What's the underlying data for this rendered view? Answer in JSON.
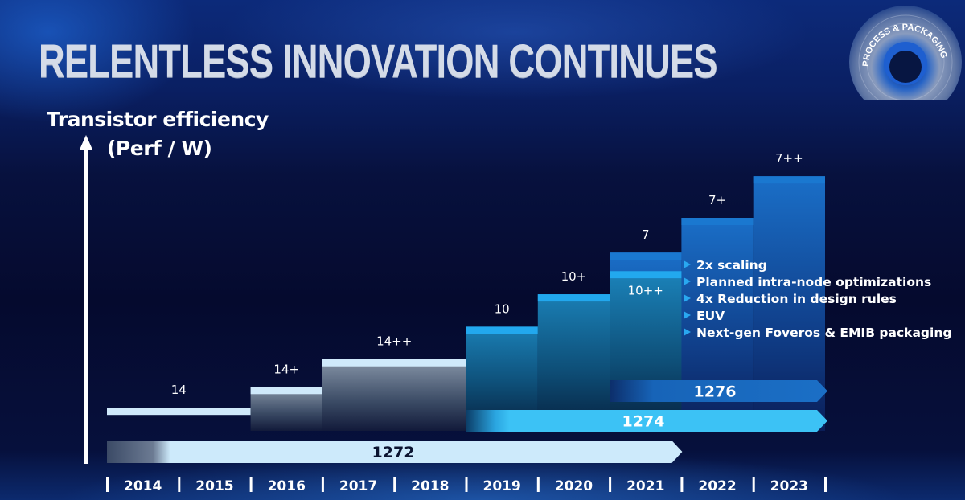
{
  "slide": {
    "title": "RELENTLESS INNOVATION CONTINUES",
    "badge_text": "PROCESS & PACKAGING",
    "y_axis_label_line1": "Transistor efficiency",
    "y_axis_label_line2": "(Perf / W)"
  },
  "bullets": [
    "2x scaling",
    "Planned intra-node optimizations",
    "4x Reduction in design rules",
    "EUV",
    "Next-gen Foveros & EMIB packaging"
  ],
  "colors": {
    "node14": "#cfe9fb",
    "node10": "#22a8ee",
    "node7": "#1a78d0",
    "arrow1272": "#cdeafb",
    "arrow1274": "#3cc2f5",
    "arrow1276": "#1b6fc6",
    "bullet": "#29a8f0"
  },
  "chart_data": {
    "type": "bar",
    "title": "RELENTLESS INNOVATION CONTINUES",
    "ylabel": "Transistor efficiency (Perf / W)",
    "xlabel": "",
    "categories": [
      "2014",
      "2015",
      "2016",
      "2017",
      "2018",
      "2019",
      "2020",
      "2021",
      "2022",
      "2023"
    ],
    "x_range": [
      2014,
      2024
    ],
    "y_scale": "relative (no numeric ticks)",
    "grid": false,
    "nodes": [
      {
        "label": "14",
        "family": "14nm",
        "start": 2014,
        "end": 2016,
        "level": 1.0
      },
      {
        "label": "14+",
        "family": "14nm",
        "start": 2016,
        "end": 2017,
        "level": 1.9
      },
      {
        "label": "14++",
        "family": "14nm",
        "start": 2017,
        "end": 2019,
        "level": 3.1
      },
      {
        "label": "10",
        "family": "10nm",
        "start": 2019,
        "end": 2020,
        "level": 4.5
      },
      {
        "label": "10+",
        "family": "10nm",
        "start": 2020,
        "end": 2021,
        "level": 5.9
      },
      {
        "label": "10++",
        "family": "10nm",
        "start": 2021,
        "end": 2022,
        "level": 6.9
      },
      {
        "label": "7",
        "family": "7nm",
        "start": 2021,
        "end": 2022,
        "level": 7.7
      },
      {
        "label": "7+",
        "family": "7nm",
        "start": 2022,
        "end": 2023,
        "level": 9.2
      },
      {
        "label": "7++",
        "family": "7nm",
        "start": 2023,
        "end": 2024,
        "level": 11.0
      }
    ],
    "process_roadmap": [
      {
        "label": "1272",
        "start": 2014,
        "end": 2022
      },
      {
        "label": "1274",
        "start": 2019,
        "end": 2024
      },
      {
        "label": "1276",
        "start": 2021,
        "end": 2024
      }
    ]
  }
}
